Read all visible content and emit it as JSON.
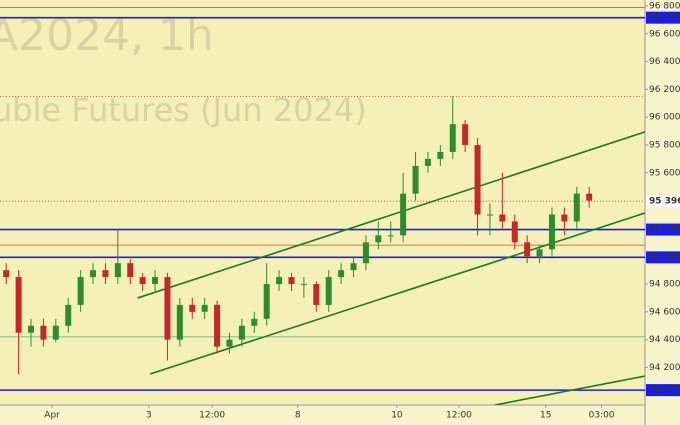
{
  "chart_data": {
    "type": "candlestick",
    "watermark": [
      "A2024, 1h",
      "uble Futures (Jun 2024)"
    ],
    "open": [
      94900,
      94850,
      94450,
      94500,
      94400,
      94500,
      94650,
      94850,
      94900,
      94850,
      94950,
      94850,
      94800,
      94850,
      94400,
      94650,
      94600,
      94650,
      94350,
      94400,
      94500,
      94550,
      94800,
      94850,
      94800,
      94800,
      94650,
      94850,
      94900,
      94950,
      95100,
      95150,
      95150,
      95450,
      95650,
      95700,
      95750,
      95950,
      95800,
      95300,
      95300,
      95250,
      95100,
      95000,
      95050,
      95300,
      95250,
      95450
    ],
    "high": [
      94950,
      94900,
      94550,
      94550,
      94550,
      94700,
      94900,
      94950,
      94950,
      95200,
      94980,
      94880,
      94900,
      94880,
      94700,
      94700,
      94700,
      94680,
      94450,
      94550,
      94600,
      94950,
      94900,
      94880,
      94850,
      94820,
      94900,
      94950,
      95000,
      95150,
      95250,
      95250,
      95600,
      95750,
      95750,
      95800,
      96150,
      95980,
      95850,
      95380,
      95600,
      95300,
      95150,
      95080,
      95350,
      95350,
      95500,
      95500
    ],
    "low": [
      94800,
      94150,
      94350,
      94350,
      94380,
      94450,
      94600,
      94800,
      94800,
      94800,
      94800,
      94750,
      94750,
      94250,
      94350,
      94550,
      94550,
      94300,
      94300,
      94350,
      94450,
      94500,
      94750,
      94750,
      94700,
      94600,
      94600,
      94800,
      94850,
      94900,
      95050,
      95100,
      95100,
      95400,
      95600,
      95650,
      95700,
      95750,
      95150,
      95150,
      95200,
      95050,
      94950,
      94950,
      95000,
      95150,
      95200,
      95350
    ],
    "close": [
      94850,
      94450,
      94500,
      94400,
      94500,
      94650,
      94850,
      94900,
      94850,
      94950,
      94850,
      94800,
      94850,
      94400,
      94650,
      94600,
      94650,
      94350,
      94400,
      94500,
      94550,
      94800,
      94850,
      94800,
      94800,
      94650,
      94850,
      94900,
      94950,
      95100,
      95150,
      95150,
      95450,
      95650,
      95700,
      95750,
      95950,
      95800,
      95300,
      95300,
      95250,
      95100,
      95000,
      95050,
      95300,
      95250,
      95450,
      95400
    ],
    "up_color": "#2e8b2e",
    "down_color": "#c62828",
    "xlim": [
      -0.5,
      51.5
    ],
    "ylim": [
      93930,
      96843
    ],
    "xticks": [
      {
        "value": 3.7,
        "label": "Apr"
      },
      {
        "value": 11.5,
        "label": "3"
      },
      {
        "value": 16.6,
        "label": "12:00"
      },
      {
        "value": 23.5,
        "label": "8"
      },
      {
        "value": 31.5,
        "label": "10"
      },
      {
        "value": 36.5,
        "label": "12:00"
      },
      {
        "value": 43.5,
        "label": "15"
      },
      {
        "value": 48,
        "label": "03:00"
      }
    ],
    "yticks": [
      {
        "value": 96800,
        "label": "96 800"
      },
      {
        "value": 96600,
        "label": "96 600"
      },
      {
        "value": 96400,
        "label": "96 400"
      },
      {
        "value": 96200,
        "label": "96 200"
      },
      {
        "value": 96000,
        "label": "96 000"
      },
      {
        "value": 95800,
        "label": "95 800"
      },
      {
        "value": 95600,
        "label": "95 600"
      },
      {
        "value": 94800,
        "label": "94 800"
      },
      {
        "value": 94600,
        "label": "94 600"
      },
      {
        "value": 94400,
        "label": "94 400"
      },
      {
        "value": 94200,
        "label": "94 200"
      }
    ],
    "levels": [
      {
        "value": 96716,
        "label": "96 716",
        "color": "#1a1aff"
      },
      {
        "value": 95396,
        "label": "95 396",
        "color": "#d04040",
        "dashed": true
      },
      {
        "value": 95192,
        "label": "95 192",
        "color": "#1a1aff"
      },
      {
        "value": 94992,
        "label": "94 992",
        "color": "#1a1aff"
      },
      {
        "value": 94037,
        "label": "94 037",
        "color": "#1a1aff"
      },
      {
        "value": 96790,
        "color": "#d04040"
      },
      {
        "value": 96150,
        "color": "#d04040",
        "dashed": true
      },
      {
        "value": 95080,
        "color": "#d04040"
      },
      {
        "value": 94420,
        "color": "#3cb371"
      }
    ],
    "trendlines": [
      {
        "x": [
          10.6,
          51.5
        ],
        "y": [
          94700,
          95894
        ],
        "color": "#1f7a1f"
      },
      {
        "x": [
          11.6,
          51.5
        ],
        "y": [
          94153,
          95311
        ],
        "color": "#1f7a1f"
      },
      {
        "x": [
          39.4,
          51.5
        ],
        "y": [
          93930,
          94138
        ],
        "color": "#1f7a1f"
      }
    ]
  }
}
